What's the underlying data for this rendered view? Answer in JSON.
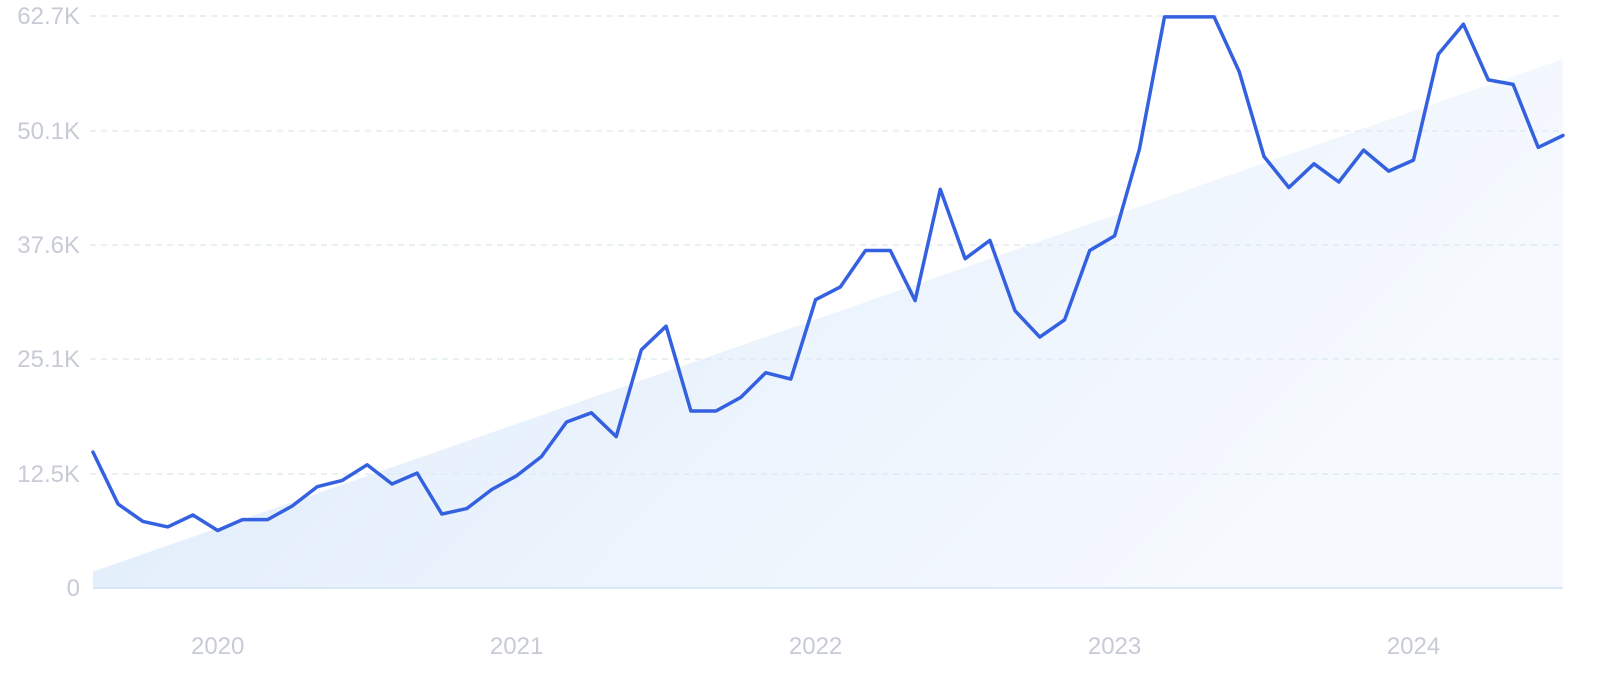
{
  "chart_data": {
    "type": "line",
    "title": "",
    "xlabel": "",
    "ylabel": "",
    "ylim": [
      0,
      62700
    ],
    "y_ticks": [
      {
        "value": 0,
        "label": "0"
      },
      {
        "value": 12500,
        "label": "12.5K"
      },
      {
        "value": 25100,
        "label": "25.1K"
      },
      {
        "value": 37600,
        "label": "37.6K"
      },
      {
        "value": 50100,
        "label": "50.1K"
      },
      {
        "value": 62700,
        "label": "62.7K"
      }
    ],
    "x_ticks": [
      {
        "value": 2020,
        "label": "2020"
      },
      {
        "value": 2021,
        "label": "2021"
      },
      {
        "value": 2022,
        "label": "2022"
      },
      {
        "value": 2023,
        "label": "2023"
      },
      {
        "value": 2024,
        "label": "2024"
      }
    ],
    "xlim": [
      2019.583,
      2024.5
    ],
    "grid": true,
    "trend": {
      "start": 1800,
      "end": 58000
    },
    "colors": {
      "line": "#3461e0",
      "grid": "#d9e6ee",
      "tick_text": "#c7cbd6",
      "trend_fill": "#dceafb",
      "baseline": "#cfe3f4"
    },
    "series": [
      {
        "x": [
          2019.583,
          2019.667,
          2019.75,
          2019.833,
          2019.917,
          2020.0,
          2020.083,
          2020.167,
          2020.25,
          2020.333,
          2020.417,
          2020.5,
          2020.583,
          2020.667,
          2020.75,
          2020.833,
          2020.917,
          2021.0,
          2021.083,
          2021.167,
          2021.25,
          2021.333,
          2021.417,
          2021.5,
          2021.583,
          2021.667,
          2021.75,
          2021.833,
          2021.917,
          2022.0,
          2022.083,
          2022.167,
          2022.25,
          2022.333,
          2022.417,
          2022.5,
          2022.583,
          2022.667,
          2022.75,
          2022.833,
          2022.917,
          2023.0,
          2023.083,
          2023.167,
          2023.25,
          2023.333,
          2023.417,
          2023.5,
          2023.583,
          2023.667,
          2023.75,
          2023.833,
          2023.917,
          2024.0,
          2024.083,
          2024.167,
          2024.25,
          2024.333,
          2024.417,
          2024.5
        ],
        "values": [
          14900,
          9200,
          7300,
          6700,
          8000,
          6300,
          7500,
          7500,
          9000,
          11100,
          11800,
          13500,
          11400,
          12600,
          8100,
          8700,
          10800,
          12300,
          14400,
          18200,
          19200,
          16600,
          26100,
          28700,
          19400,
          19400,
          20900,
          23600,
          22900,
          31600,
          33000,
          37000,
          37000,
          31500,
          43700,
          36100,
          38100,
          30400,
          27500,
          29400,
          37000,
          38600,
          48100,
          62600,
          62600,
          62600,
          56600,
          47300,
          43900,
          46500,
          44500,
          48000,
          45700,
          46900,
          58500,
          61800,
          55700,
          55200,
          48300,
          49600
        ]
      }
    ]
  }
}
